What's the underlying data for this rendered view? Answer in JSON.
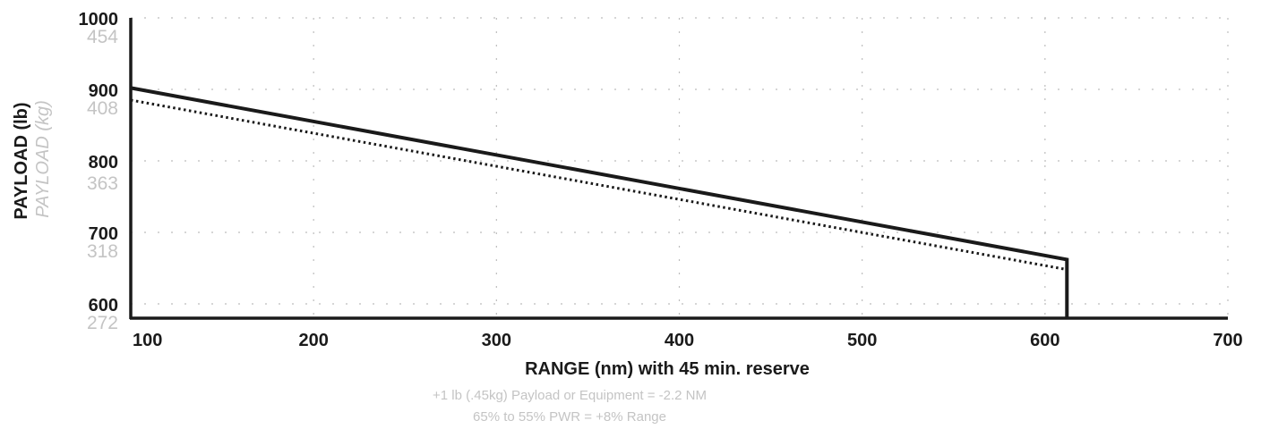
{
  "chart_data": {
    "type": "line",
    "xlabel": "RANGE (nm) with 45 min. reserve",
    "ylabel": "PAYLOAD (lb)",
    "ylabel_secondary": "PAYLOAD (kg)",
    "xlim": [
      100,
      700
    ],
    "ylim": [
      580,
      1000
    ],
    "x_ticks": [
      "100",
      "200",
      "300",
      "400",
      "500",
      "600",
      "700"
    ],
    "y_ticks": [
      {
        "value": 1000,
        "label": "1000"
      },
      {
        "value": 900,
        "label": "900"
      },
      {
        "value": 800,
        "label": "800"
      },
      {
        "value": 700,
        "label": "700"
      },
      {
        "value": 600,
        "label": "600"
      }
    ],
    "y_ticks_secondary": [
      {
        "value": 975,
        "label": "454"
      },
      {
        "value": 875,
        "label": "408"
      },
      {
        "value": 770,
        "label": "363"
      },
      {
        "value": 675,
        "label": "318"
      },
      {
        "value": 575,
        "label": "272"
      }
    ],
    "grid": true,
    "series": [
      {
        "style": "solid",
        "color": "#1a1a1a",
        "x": [
          100,
          612,
          612
        ],
        "y": [
          902,
          662,
          580
        ]
      },
      {
        "style": "dotted",
        "color": "#1a1a1a",
        "x": [
          100,
          612
        ],
        "y": [
          885,
          648
        ]
      }
    ],
    "notes": [
      "+1 lb (.45kg) Payload or Equipment = -2.2 NM",
      "65% to 55% PWR = +8% Range"
    ]
  }
}
